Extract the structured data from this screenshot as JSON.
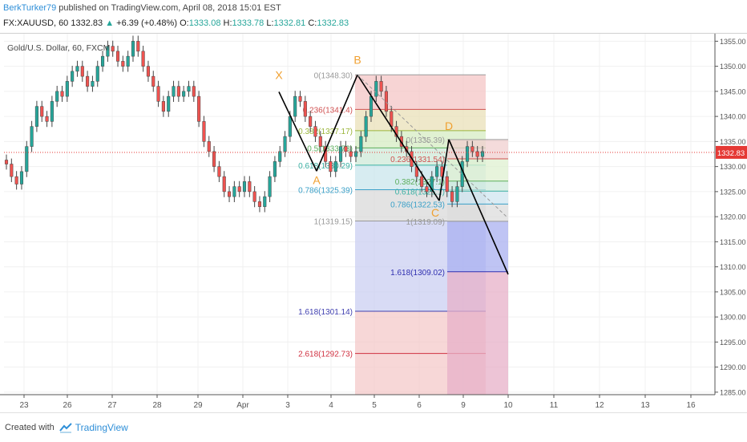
{
  "header": {
    "author": "BerkTurker79",
    "published": " published on TradingView.com, April 08, 2018 15:01 EST",
    "symbol": "FX:XAUUSD, 60",
    "last": "1332.83",
    "change": "+6.39 (+0.48%)",
    "o_label": "O:",
    "o": "1333.08",
    "h_label": "H:",
    "h": "1333.78",
    "l_label": "L:",
    "l": "1332.81",
    "c_label": "C:",
    "c": "1332.83"
  },
  "footer": {
    "created_with": "Created with",
    "brand": "TradingView"
  },
  "colors": {
    "up": "#26a69a",
    "down": "#ef5350",
    "price_tag": "#e53935",
    "pattern": "#000000",
    "letters": "#f0a030"
  },
  "chart_data": {
    "type": "candlestick",
    "title": "Gold/U.S. Dollar, 60, FXCM",
    "ylim": [
      1285,
      1356
    ],
    "y_ticks": [
      "1285.00",
      "1290.00",
      "1295.00",
      "1300.00",
      "1305.00",
      "1310.00",
      "1315.00",
      "1320.00",
      "1325.00",
      "1330.00",
      "1335.00",
      "1340.00",
      "1345.00",
      "1350.00",
      "1355.00"
    ],
    "x_ticks": [
      "23",
      "26",
      "27",
      "28",
      "29",
      "Apr",
      "3",
      "4",
      "5",
      "6",
      "9",
      "10",
      "11",
      "12",
      "13",
      "16"
    ],
    "last_price": "1332.83",
    "close_series": [
      1330.5,
      1328,
      1326.5,
      1329,
      1334,
      1338,
      1342,
      1340,
      1339,
      1343,
      1345,
      1344,
      1347,
      1349,
      1350,
      1348,
      1346,
      1347,
      1350,
      1352,
      1354,
      1353,
      1351,
      1350,
      1352,
      1355,
      1353,
      1350,
      1348,
      1346,
      1343,
      1341,
      1344,
      1346,
      1344,
      1345,
      1346,
      1344,
      1339,
      1335,
      1333,
      1330,
      1328,
      1325,
      1324,
      1326,
      1325,
      1327,
      1325,
      1323,
      1322,
      1324,
      1328,
      1331,
      1333,
      1336,
      1340,
      1344,
      1343,
      1340,
      1338,
      1336,
      1334,
      1331,
      1329,
      1331,
      1334,
      1333,
      1332,
      1333,
      1336,
      1340,
      1344,
      1347,
      1345,
      1341,
      1338,
      1336,
      1334,
      1333,
      1330,
      1328,
      1326,
      1325,
      1328,
      1330,
      1328,
      1325,
      1323,
      1326,
      1331,
      1334,
      1333,
      1332,
      1333
    ],
    "pattern_points": [
      {
        "label": "X",
        "t": "Apr 3",
        "price": 1344.9
      },
      {
        "label": "A",
        "t": "Apr 4",
        "price": 1329.1
      },
      {
        "label": "B",
        "t": "Apr 5",
        "price": 1348.3
      },
      {
        "label": "C",
        "t": "Apr 6",
        "price": 1323.2
      },
      {
        "label": "D",
        "t": "Apr 9",
        "price": 1335.4
      }
    ],
    "projection": {
      "to_t": "Apr 10",
      "to_price": 1308.5
    },
    "fib_levels_left": [
      {
        "label": "0(1348.30)",
        "price": 1348.3
      },
      {
        "label": "0.236(1341.4)",
        "price": 1341.4
      },
      {
        "label": "0.382(1337.17)",
        "price": 1337.17
      },
      {
        "label": "0.5(1333.73)",
        "price": 1333.73
      },
      {
        "label": "0.618(1330.29)",
        "price": 1330.29
      },
      {
        "label": "0.786(1325.39)",
        "price": 1325.39
      },
      {
        "label": "1(1319.15)",
        "price": 1319.15
      },
      {
        "label": "1.618(1301.14)",
        "price": 1301.14
      },
      {
        "label": "2.618(1292.73)",
        "price": 1292.73
      }
    ],
    "fib_levels_right": [
      {
        "label": "0(1335.39)",
        "price": 1335.39
      },
      {
        "label": "0.236(1331.54)",
        "price": 1331.54
      },
      {
        "label": "0.382(1327.1)",
        "price": 1327.1
      },
      {
        "label": "0.618(1325.1)",
        "price": 1325.1
      },
      {
        "label": "0.786(1322.53)",
        "price": 1322.53
      },
      {
        "label": "1(1319.09)",
        "price": 1319.09
      },
      {
        "label": "1.618(1309.02)",
        "price": 1309.02
      }
    ],
    "grid": true
  }
}
